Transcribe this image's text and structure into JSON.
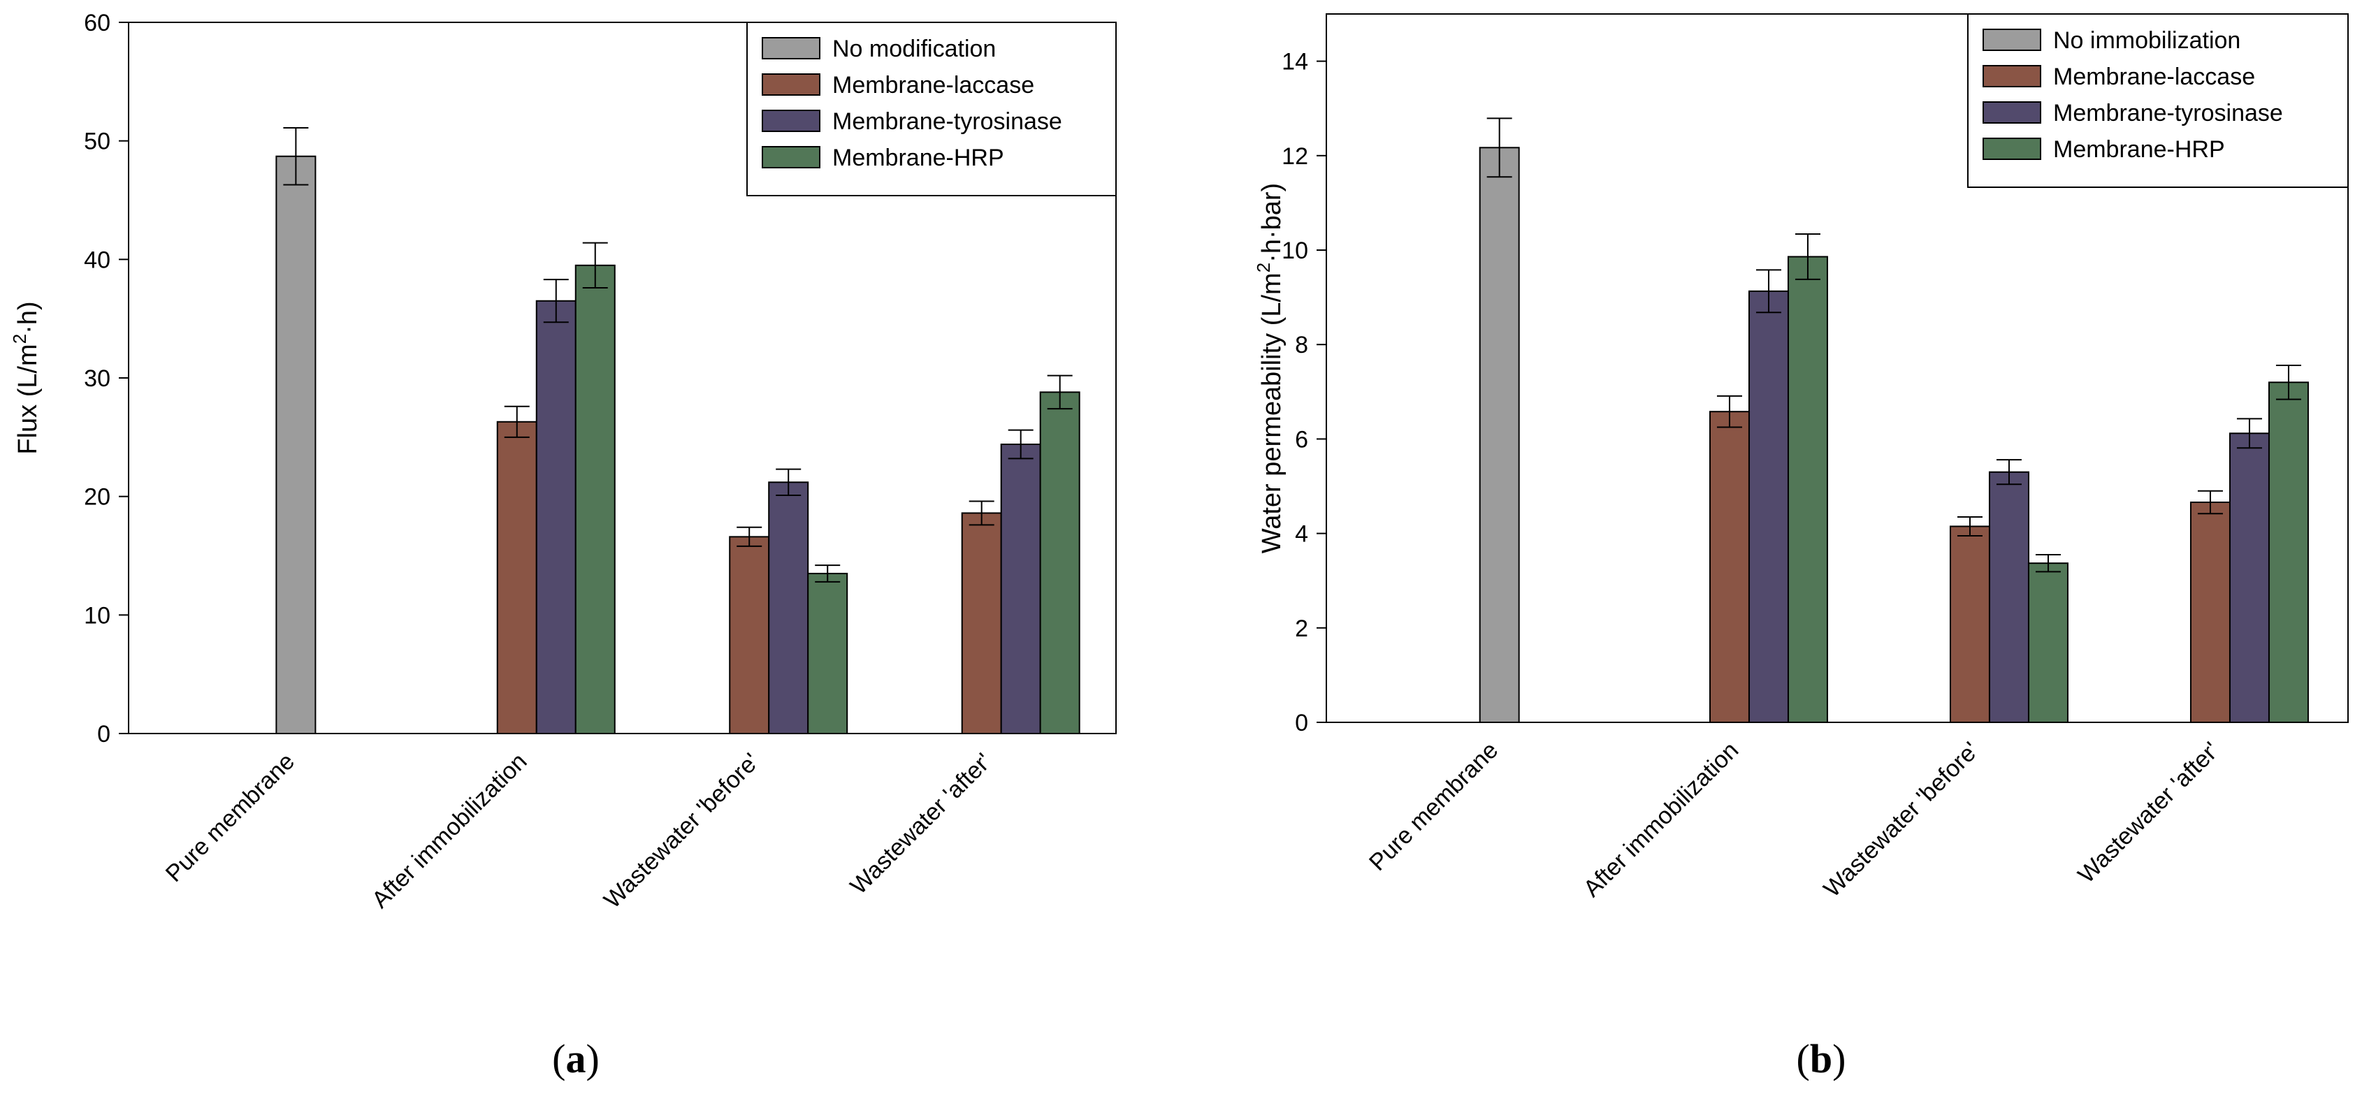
{
  "chart_data": [
    {
      "type": "bar",
      "panel_label": "(a)",
      "ylabel": "Flux (L/m²·h)",
      "xlabel": "",
      "ylim": [
        0,
        60
      ],
      "yticks": [
        0,
        10,
        20,
        30,
        40,
        50,
        60
      ],
      "grid": false,
      "legend_position": "top-right",
      "categories": [
        "Pure membrane",
        "After immobilization",
        "Wastewater 'before'",
        "Wastewater 'after'"
      ],
      "series": [
        {
          "name": "No modification",
          "color": "#9c9c9c",
          "values": [
            48.7,
            null,
            null,
            null
          ],
          "errors": [
            2.4,
            null,
            null,
            null
          ]
        },
        {
          "name": "Membrane-laccase",
          "color": "#8a5545",
          "values": [
            null,
            26.3,
            16.6,
            18.6
          ],
          "errors": [
            null,
            1.3,
            0.8,
            1.0
          ]
        },
        {
          "name": "Membrane-tyrosinase",
          "color": "#524a6c",
          "values": [
            null,
            36.5,
            21.2,
            24.4
          ],
          "errors": [
            null,
            1.8,
            1.1,
            1.2
          ]
        },
        {
          "name": "Membrane-HRP",
          "color": "#527757",
          "values": [
            null,
            39.5,
            13.5,
            28.8
          ],
          "errors": [
            null,
            1.9,
            0.7,
            1.4
          ]
        }
      ]
    },
    {
      "type": "bar",
      "panel_label": "(b)",
      "ylabel": "Water permeability (L/m²·h·bar)",
      "xlabel": "",
      "ylim": [
        0,
        15
      ],
      "yticks": [
        0,
        2,
        4,
        6,
        8,
        10,
        12,
        14
      ],
      "grid": false,
      "legend_position": "top-right",
      "categories": [
        "Pure membrane",
        "After immobilization",
        "Wastewater 'before'",
        "Wastewater 'after'"
      ],
      "series": [
        {
          "name": "No immobilization",
          "color": "#9c9c9c",
          "values": [
            12.17,
            null,
            null,
            null
          ],
          "errors": [
            0.62,
            null,
            null,
            null
          ]
        },
        {
          "name": "Membrane-laccase",
          "color": "#8a5545",
          "values": [
            null,
            6.58,
            4.15,
            4.66
          ],
          "errors": [
            null,
            0.33,
            0.2,
            0.24
          ]
        },
        {
          "name": "Membrane-tyrosinase",
          "color": "#524a6c",
          "values": [
            null,
            9.13,
            5.3,
            6.12
          ],
          "errors": [
            null,
            0.45,
            0.26,
            0.31
          ]
        },
        {
          "name": "Membrane-HRP",
          "color": "#527757",
          "values": [
            null,
            9.86,
            3.37,
            7.2
          ],
          "errors": [
            null,
            0.48,
            0.18,
            0.36
          ]
        }
      ]
    }
  ]
}
